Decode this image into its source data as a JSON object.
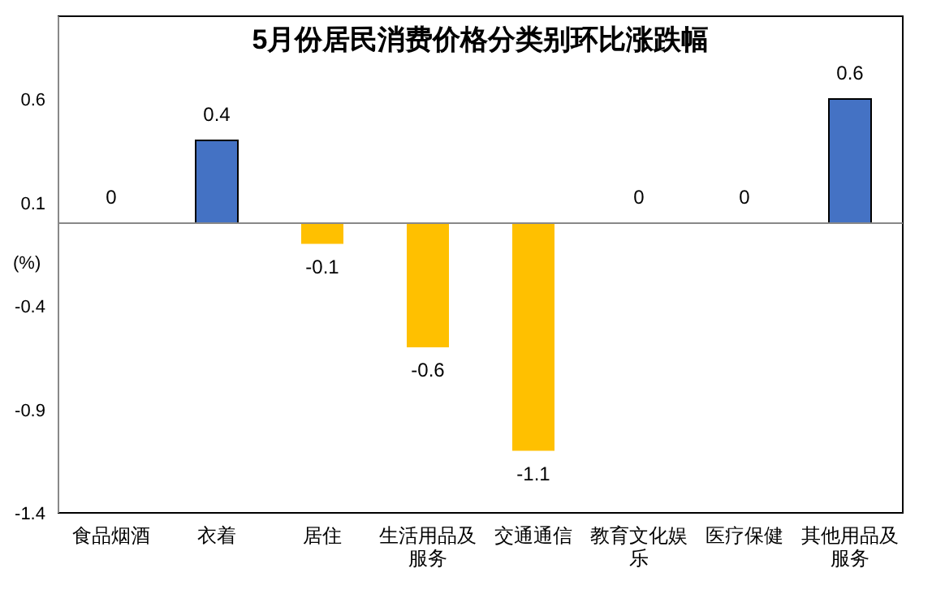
{
  "chart_data": {
    "type": "bar",
    "title": "5月份居民消费价格分类别环比涨跌幅",
    "ylabel": "(%)",
    "categories": [
      "食品烟酒",
      "衣着",
      "居住",
      "生活用品及服务",
      "交通通信",
      "教育文化娱乐",
      "医疗保健",
      "其他用品及服务"
    ],
    "values": [
      0,
      0.4,
      -0.1,
      -0.6,
      -1.1,
      0,
      0,
      0.6
    ],
    "colors": [
      "#4472c4",
      "#4472c4",
      "#ffc000",
      "#ffc000",
      "#ffc000",
      "#4472c4",
      "#4472c4",
      "#4472c4"
    ],
    "ylim": [
      -1.4,
      1.0
    ],
    "yticks": [
      -1.4,
      -0.9,
      -0.4,
      0.1,
      0.6
    ],
    "data_labels": true,
    "grid": false
  }
}
